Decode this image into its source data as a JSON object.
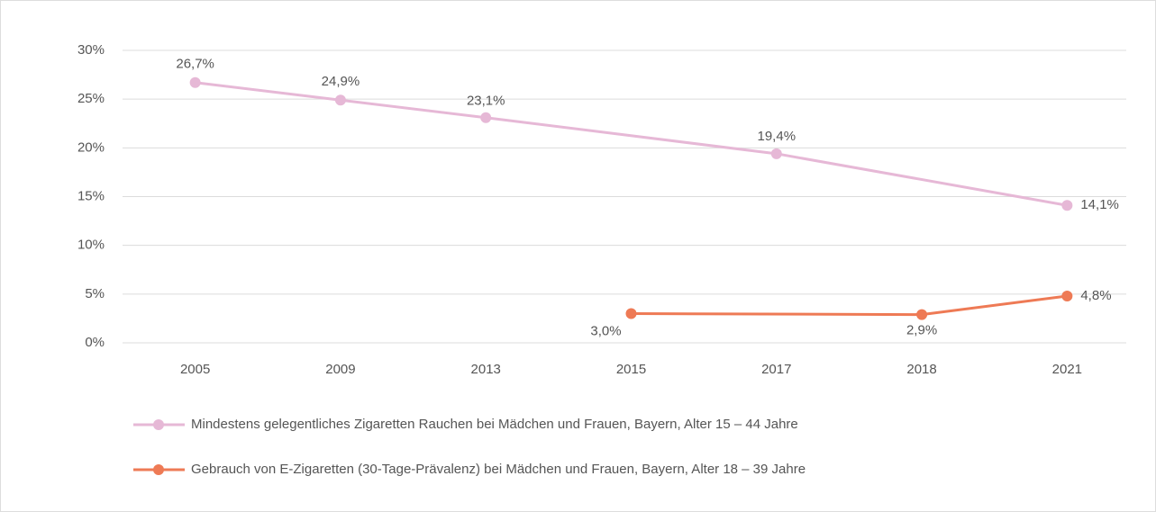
{
  "chart_data": {
    "type": "line",
    "categories": [
      "2005",
      "2009",
      "2013",
      "2015",
      "2017",
      "2018",
      "2021"
    ],
    "series": [
      {
        "name": "Mindestens gelegentliches Zigaretten Rauchen bei Mädchen und Frauen, Bayern, Alter 15 – 44 Jahre",
        "color": "#e6b8d6",
        "x": [
          "2005",
          "2009",
          "2013",
          "2017",
          "2021"
        ],
        "values": [
          26.7,
          24.9,
          23.1,
          19.4,
          14.1
        ],
        "value_labels": [
          "26,7%",
          "24,9%",
          "23,1%",
          "19,4%",
          "14,1%"
        ]
      },
      {
        "name": "Gebrauch von E-Zigaretten (30-Tage-Prävalenz) bei Mädchen und Frauen, Bayern, Alter 18 – 39 Jahre",
        "color": "#ee7a55",
        "x": [
          "2015",
          "2018",
          "2021"
        ],
        "values": [
          3.0,
          2.9,
          4.8
        ],
        "value_labels": [
          "3,0%",
          "2,9%",
          "4,8%"
        ]
      }
    ],
    "ylim": [
      0,
      30
    ],
    "yticks": [
      {
        "value": 0,
        "label": "0%"
      },
      {
        "value": 5,
        "label": "5%"
      },
      {
        "value": 10,
        "label": "10%"
      },
      {
        "value": 15,
        "label": "15%"
      },
      {
        "value": 20,
        "label": "20%"
      },
      {
        "value": 25,
        "label": "25%"
      },
      {
        "value": 30,
        "label": "30%"
      }
    ],
    "grid": true
  }
}
